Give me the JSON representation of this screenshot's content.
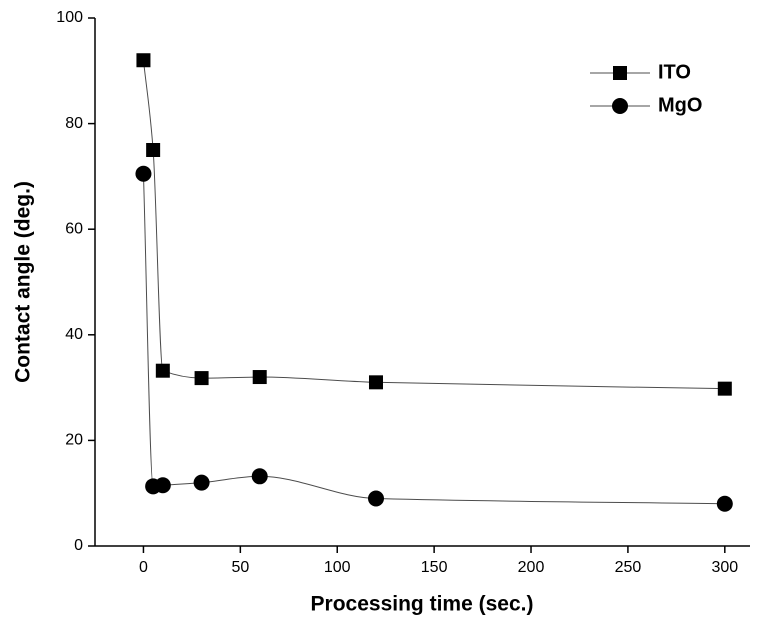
{
  "chart_data": {
    "type": "line",
    "x_label": "Processing time (sec.)",
    "y_label": "Contact angle (deg.)",
    "x": [
      0,
      5,
      10,
      30,
      60,
      120,
      300
    ],
    "series": [
      {
        "name": "ITO",
        "color": "#000000",
        "marker": "square",
        "values": [
          92,
          75,
          33.2,
          31.8,
          32,
          31,
          29.8
        ]
      },
      {
        "name": "MgO",
        "color": "#000000",
        "marker": "circle",
        "values": [
          70.5,
          11.3,
          11.5,
          12,
          13.2,
          9,
          8
        ]
      }
    ],
    "xlim": [
      -25,
      313
    ],
    "ylim": [
      0,
      100
    ],
    "xticks": [
      0,
      50,
      100,
      150,
      200,
      250,
      300
    ],
    "yticks": [
      0,
      20,
      40,
      60,
      80,
      100
    ],
    "smooth": true,
    "legend": "upper right"
  }
}
